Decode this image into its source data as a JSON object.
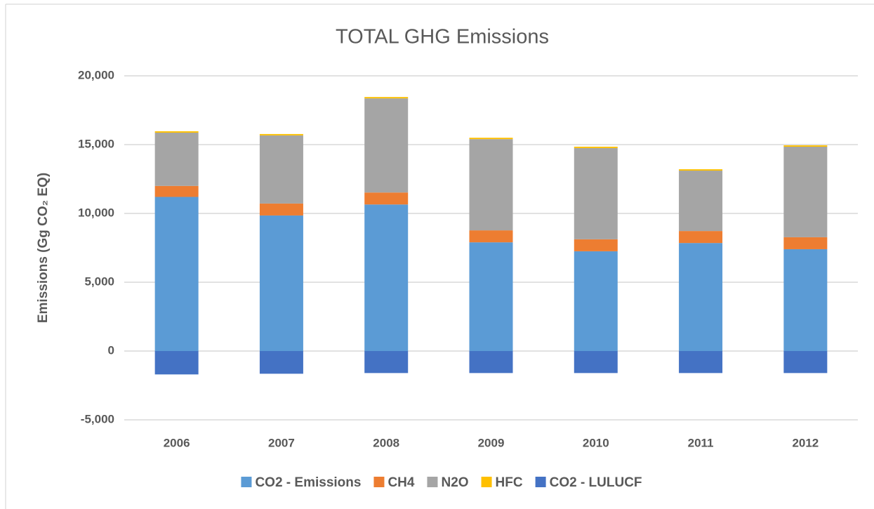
{
  "chart_data": {
    "type": "stacked_bar",
    "title": "TOTAL GHG Emissions",
    "y_label": "Emissions (Gg CO₂ EQ)",
    "categories": [
      "2006",
      "2007",
      "2008",
      "2009",
      "2010",
      "2011",
      "2012"
    ],
    "series": [
      {
        "name": "CO2 - Emissions",
        "color": "#5b9bd5",
        "values": [
          11200,
          9850,
          10650,
          7900,
          7250,
          7850,
          7400
        ]
      },
      {
        "name": "CH4",
        "color": "#ed7d31",
        "values": [
          800,
          870,
          870,
          870,
          870,
          870,
          870
        ]
      },
      {
        "name": "N2O",
        "color": "#a5a5a5",
        "values": [
          3870,
          4950,
          6840,
          6630,
          6630,
          4390,
          6580
        ]
      },
      {
        "name": "HFC",
        "color": "#ffc000",
        "values": [
          100,
          100,
          100,
          100,
          100,
          100,
          100
        ]
      },
      {
        "name": "CO2 - LULUCF",
        "color": "#4472c4",
        "values": [
          -1700,
          -1650,
          -1600,
          -1600,
          -1600,
          -1600,
          -1600
        ]
      }
    ],
    "ylim": [
      -5000,
      20000
    ],
    "yticks": [
      {
        "value": -5000,
        "label": "-5,000"
      },
      0,
      {
        "value": 5000,
        "label": "5,000"
      },
      {
        "value": 10000,
        "label": "10,000"
      },
      {
        "value": 15000,
        "label": "15,000"
      },
      {
        "value": 20000,
        "label": "20,000"
      }
    ],
    "grid": true,
    "legend": "bottom"
  }
}
